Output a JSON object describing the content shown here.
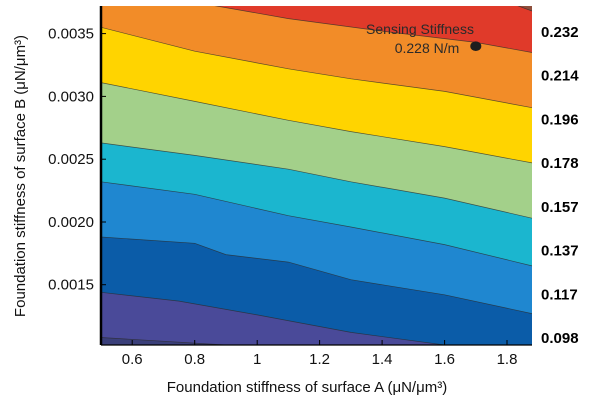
{
  "chart_data": {
    "type": "contour",
    "title": "",
    "xlabel": "Foundation stiffness of surface A (μN/μm³)",
    "ylabel": "Foundation stiffness of surface B (μN/μm³)",
    "xlim": [
      0.5,
      1.88
    ],
    "ylim": [
      0.00102,
      0.00372
    ],
    "x_ticks": [
      0.6,
      0.8,
      1,
      1.2,
      1.4,
      1.6,
      1.8
    ],
    "x_tick_labels": [
      "0.6",
      "0.8",
      "1",
      "1.2",
      "1.4",
      "1.6",
      "1.8"
    ],
    "y_ticks": [
      0.0015,
      0.002,
      0.0025,
      0.003,
      0.0035
    ],
    "y_tick_labels": [
      "0.0015",
      "0.0020",
      "0.0025",
      "0.0030",
      "0.0035"
    ],
    "level_labels": [
      "0.232",
      "0.214",
      "0.196",
      "0.178",
      "0.157",
      "0.137",
      "0.117",
      "0.098"
    ],
    "colors": [
      "#3a3f7a",
      "#4a4a99",
      "#0b5ca8",
      "#1f87d0",
      "#1bb6cf",
      "#a3d08a",
      "#ffd400",
      "#f28c28",
      "#e03a2a",
      "#8e4f3c"
    ],
    "boundaries": [
      {
        "points": [
          [
            0.5,
            0.00108
          ],
          [
            0.9,
            0.00102
          ]
        ]
      },
      {
        "points": [
          [
            0.5,
            0.00144
          ],
          [
            0.75,
            0.00137
          ],
          [
            1.0,
            0.00126
          ],
          [
            1.3,
            0.00112
          ],
          [
            1.6,
            0.00102
          ]
        ]
      },
      {
        "points": [
          [
            0.5,
            0.00188
          ],
          [
            0.8,
            0.00183
          ],
          [
            0.9,
            0.00174
          ],
          [
            1.1,
            0.00168
          ],
          [
            1.3,
            0.00154
          ],
          [
            1.6,
            0.00142
          ],
          [
            1.88,
            0.00127
          ]
        ]
      },
      {
        "points": [
          [
            0.5,
            0.00232
          ],
          [
            0.8,
            0.00222
          ],
          [
            1.1,
            0.00205
          ],
          [
            1.3,
            0.00196
          ],
          [
            1.6,
            0.00182
          ],
          [
            1.88,
            0.00165
          ]
        ]
      },
      {
        "points": [
          [
            0.5,
            0.00263
          ],
          [
            0.8,
            0.00253
          ],
          [
            1.1,
            0.00242
          ],
          [
            1.3,
            0.00232
          ],
          [
            1.6,
            0.00219
          ],
          [
            1.88,
            0.00203
          ]
        ]
      },
      {
        "points": [
          [
            0.5,
            0.00311
          ],
          [
            0.8,
            0.00296
          ],
          [
            1.1,
            0.00281
          ],
          [
            1.3,
            0.00272
          ],
          [
            1.6,
            0.0026
          ],
          [
            1.88,
            0.00247
          ]
        ]
      },
      {
        "points": [
          [
            0.5,
            0.00355
          ],
          [
            0.8,
            0.00336
          ],
          [
            1.1,
            0.00322
          ],
          [
            1.3,
            0.00314
          ],
          [
            1.6,
            0.00304
          ],
          [
            1.88,
            0.00291
          ]
        ]
      },
      {
        "points": [
          [
            0.5,
            0.00392
          ],
          [
            0.8,
            0.00375
          ],
          [
            1.1,
            0.00362
          ],
          [
            1.4,
            0.00352
          ],
          [
            1.7,
            0.00343
          ],
          [
            1.88,
            0.00335
          ]
        ]
      },
      {
        "points": [
          [
            1.55,
            0.004
          ],
          [
            1.75,
            0.0038
          ],
          [
            1.88,
            0.00368
          ]
        ]
      }
    ],
    "annotation": {
      "line1": "Sensing Stiffness",
      "line2": "0.228 N/m",
      "point": [
        1.7,
        0.0034
      ]
    }
  }
}
